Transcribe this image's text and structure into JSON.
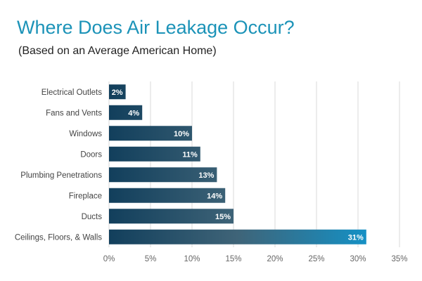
{
  "chart_data": {
    "type": "bar",
    "orientation": "horizontal",
    "title": "Where Does Air Leakage Occur?",
    "subtitle": "(Based on an Average American Home)",
    "categories": [
      "Electrical Outlets",
      "Fans and Vents",
      "Windows",
      "Doors",
      "Plumbing Penetrations",
      "Fireplace",
      "Ducts",
      "Ceilings, Floors, & Walls"
    ],
    "values": [
      2,
      4,
      10,
      11,
      13,
      14,
      15,
      31
    ],
    "data_labels": [
      "2%",
      "4%",
      "10%",
      "11%",
      "13%",
      "14%",
      "15%",
      "31%"
    ],
    "xlim": [
      0,
      35
    ],
    "x_ticks": [
      0,
      5,
      10,
      15,
      20,
      25,
      30,
      35
    ],
    "x_tick_labels": [
      "0%",
      "5%",
      "10%",
      "15%",
      "20%",
      "25%",
      "30%",
      "35%"
    ],
    "grid": "vertical",
    "xlabel": "",
    "ylabel": "",
    "colors": {
      "title": "#1c93b8",
      "bar_dark": "#123f5c",
      "bar_gradient_end": "#1590c4"
    }
  }
}
